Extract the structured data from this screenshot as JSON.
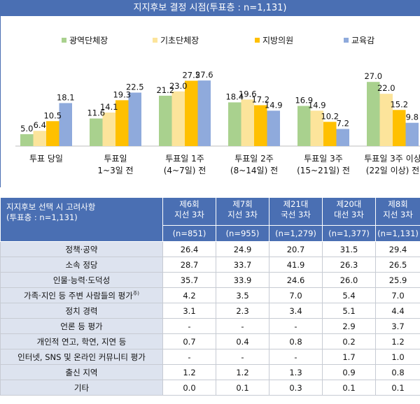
{
  "chart_data": {
    "type": "bar",
    "title": "지지후보 결정 시점(투표층 : n=1,131)",
    "categories": [
      [
        "투표 당일"
      ],
      [
        "투표일",
        "1~3일 전"
      ],
      [
        "투표일 1주",
        "(4~7일) 전"
      ],
      [
        "투표일 2주",
        "(8~14일) 전"
      ],
      [
        "투표일 3주",
        "(15~21일) 전"
      ],
      [
        "투표일 3주 이상",
        "(22일 이상) 전"
      ]
    ],
    "series": [
      {
        "name": "광역단체장",
        "color": "#a9d18e",
        "values": [
          5.0,
          11.6,
          21.2,
          18.4,
          16.9,
          27.0
        ]
      },
      {
        "name": "기초단체장",
        "color": "#fce49b",
        "values": [
          6.4,
          14.1,
          23.0,
          19.6,
          14.9,
          22.0
        ]
      },
      {
        "name": "지방의원",
        "color": "#ffc000",
        "values": [
          10.5,
          19.3,
          27.5,
          17.2,
          10.2,
          15.2
        ]
      },
      {
        "name": "교육감",
        "color": "#8faadc",
        "values": [
          18.1,
          22.5,
          27.6,
          14.9,
          7.2,
          9.8
        ]
      }
    ],
    "legend": "top",
    "ylim": [
      0,
      30
    ]
  },
  "table": {
    "header": "지지후보 선택 시 고려사항",
    "subheader": "(투표층 : n=1,131)",
    "columns": [
      {
        "name1": "제6회",
        "name2": "지선 3차",
        "n": "(n=851)"
      },
      {
        "name1": "제7회",
        "name2": "지선 3차",
        "n": "(n=955)"
      },
      {
        "name1": "제21대",
        "name2": "국선 3차",
        "n": "(n=1,279)"
      },
      {
        "name1": "제20대",
        "name2": "대선 3차",
        "n": "(n=1,377)"
      },
      {
        "name1": "제8회",
        "name2": "지선 3차",
        "n": "(n=1,131)"
      }
    ],
    "rows": [
      {
        "label": "정책·공약",
        "values": [
          "26.4",
          "24.9",
          "20.7",
          "31.5",
          "29.4"
        ]
      },
      {
        "label": "소속 정당",
        "values": [
          "28.7",
          "33.7",
          "41.9",
          "26.3",
          "26.5"
        ]
      },
      {
        "label": "인물·능력·도덕성",
        "values": [
          "35.7",
          "33.9",
          "24.6",
          "26.0",
          "25.9"
        ]
      },
      {
        "label": "가족·지인 등 주변 사람들의 평가",
        "sup": "주)",
        "values": [
          "4.2",
          "3.5",
          "7.0",
          "5.4",
          "7.0"
        ]
      },
      {
        "label": "정치 경력",
        "values": [
          "3.1",
          "2.3",
          "3.4",
          "5.1",
          "4.4"
        ]
      },
      {
        "label": "언론 등 평가",
        "values": [
          "-",
          "-",
          "-",
          "2.9",
          "3.7"
        ]
      },
      {
        "label": "개인적 연고, 학연, 지연 등",
        "values": [
          "0.7",
          "0.4",
          "0.8",
          "0.2",
          "1.2"
        ]
      },
      {
        "label": "인터넷, SNS 및 온라인 커뮤니티 평가",
        "values": [
          "-",
          "-",
          "-",
          "1.7",
          "1.0"
        ]
      },
      {
        "label": "출신 지역",
        "values": [
          "1.2",
          "1.2",
          "1.3",
          "0.9",
          "0.8"
        ]
      },
      {
        "label": "기타",
        "values": [
          "0.0",
          "0.1",
          "0.3",
          "0.1",
          "0.1"
        ]
      }
    ]
  }
}
